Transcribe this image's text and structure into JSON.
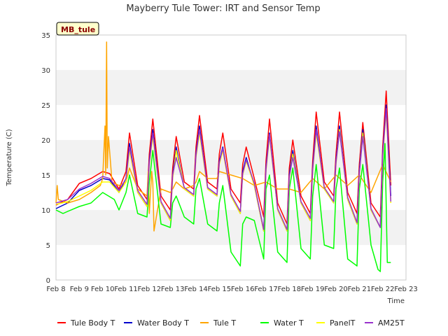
{
  "chart_data": {
    "type": "line",
    "title": "Mayberry Tule Tower: IRT and Sensor Temp",
    "badge": "MB_tule",
    "xlabel": "Time",
    "ylabel": "Temperature (C)",
    "xlim": [
      8,
      23
    ],
    "ylim": [
      0,
      35
    ],
    "xticks": [
      8,
      9,
      10,
      11,
      12,
      13,
      14,
      15,
      16,
      17,
      18,
      19,
      20,
      21,
      22,
      23
    ],
    "xtick_labels": [
      "Feb 8",
      "Feb 9",
      "Feb 10",
      "Feb 11",
      "Feb 12",
      "Feb 13",
      "Feb 14",
      "Feb 15",
      "Feb 16",
      "Feb 17",
      "Feb 18",
      "Feb 19",
      "Feb 20",
      "Feb 21",
      "Feb 22",
      "Feb 23"
    ],
    "yticks": [
      0,
      5,
      10,
      15,
      20,
      25,
      30,
      35
    ],
    "grid": "horizontal bands",
    "legend_position": "bottom",
    "series": [
      {
        "name": "Tule Body T",
        "color": "#ff0000",
        "x": [
          8.0,
          8.5,
          9.0,
          9.5,
          10.0,
          10.3,
          10.7,
          11.0,
          11.15,
          11.5,
          11.9,
          12.0,
          12.15,
          12.5,
          12.9,
          13.0,
          13.15,
          13.5,
          13.9,
          14.0,
          14.15,
          14.5,
          14.9,
          15.0,
          15.15,
          15.5,
          15.9,
          16.0,
          16.15,
          16.5,
          16.9,
          17.0,
          17.15,
          17.5,
          17.9,
          18.0,
          18.15,
          18.5,
          18.9,
          19.0,
          19.15,
          19.5,
          19.9,
          20.0,
          20.15,
          20.5,
          20.9,
          21.0,
          21.15,
          21.5,
          21.9,
          22.0,
          22.15,
          22.35
        ],
        "values": [
          10.7,
          11.5,
          13.8,
          14.5,
          15.5,
          15.2,
          13.0,
          15.5,
          21.0,
          13.5,
          11.5,
          18.0,
          23.0,
          12.0,
          10.0,
          16.0,
          20.5,
          14.0,
          13.0,
          19.0,
          23.5,
          14.0,
          13.0,
          18.0,
          21.0,
          13.0,
          11.0,
          16.5,
          19.0,
          14.5,
          9.0,
          17.0,
          23.0,
          11.0,
          8.0,
          16.0,
          20.0,
          12.0,
          9.5,
          17.0,
          24.0,
          14.0,
          12.0,
          18.0,
          24.0,
          12.5,
          9.5,
          16.5,
          22.5,
          11.0,
          9.0,
          19.0,
          27.0,
          13.5
        ]
      },
      {
        "name": "Water Body T",
        "color": "#0000cc",
        "x": [
          8.0,
          8.5,
          9.0,
          9.5,
          10.0,
          10.3,
          10.7,
          11.0,
          11.15,
          11.5,
          11.9,
          12.0,
          12.15,
          12.5,
          12.9,
          13.0,
          13.15,
          13.5,
          13.9,
          14.0,
          14.15,
          14.5,
          14.9,
          15.0,
          15.15,
          15.5,
          15.9,
          16.0,
          16.15,
          16.5,
          16.9,
          17.0,
          17.15,
          17.5,
          17.9,
          18.0,
          18.15,
          18.5,
          18.9,
          19.0,
          19.15,
          19.5,
          19.9,
          20.0,
          20.15,
          20.5,
          20.9,
          21.0,
          21.15,
          21.5,
          21.9,
          22.0,
          22.15,
          22.35
        ],
        "values": [
          10.2,
          11.0,
          12.8,
          13.5,
          14.5,
          14.3,
          12.5,
          14.5,
          19.5,
          12.5,
          10.5,
          17.0,
          21.5,
          11.0,
          8.5,
          15.0,
          19.0,
          13.0,
          12.0,
          18.0,
          22.0,
          13.0,
          12.0,
          17.0,
          19.0,
          12.0,
          9.5,
          15.5,
          17.5,
          13.5,
          7.0,
          16.0,
          21.0,
          10.0,
          7.0,
          15.0,
          18.5,
          11.0,
          8.5,
          16.0,
          22.0,
          13.0,
          11.0,
          17.0,
          22.0,
          11.5,
          8.0,
          15.5,
          21.5,
          10.0,
          7.5,
          18.0,
          25.0,
          12.0
        ]
      },
      {
        "name": "Tule T",
        "color": "#ffa500",
        "x": [
          8.0,
          8.05,
          8.1,
          8.5,
          9.0,
          9.5,
          9.9,
          10.0,
          10.1,
          10.13,
          10.17,
          10.2,
          10.25,
          10.4,
          10.7,
          11.0,
          11.15,
          11.5,
          11.9,
          11.95,
          12.0,
          12.1,
          12.15,
          12.2,
          12.5,
          12.9,
          13.0,
          13.15,
          13.5,
          13.9,
          14.0,
          14.15,
          14.5,
          14.9,
          15.0,
          15.5,
          16.0,
          16.5,
          17.0,
          17.5,
          18.0,
          18.5,
          19.0,
          19.5,
          20.0,
          20.5,
          21.0,
          21.5,
          22.0,
          22.35
        ],
        "values": [
          11.0,
          13.5,
          11.5,
          11.0,
          11.5,
          12.5,
          13.5,
          14.5,
          22.0,
          15.0,
          34.0,
          16.0,
          20.5,
          14.0,
          13.5,
          14.0,
          16.0,
          13.0,
          12.0,
          15.5,
          9.5,
          15.5,
          14.0,
          7.0,
          13.0,
          12.5,
          13.0,
          14.0,
          13.0,
          13.5,
          14.0,
          15.5,
          14.5,
          14.5,
          15.5,
          15.0,
          14.5,
          13.5,
          14.0,
          13.0,
          13.0,
          12.5,
          14.5,
          13.0,
          15.0,
          13.5,
          15.0,
          12.5,
          16.5,
          14.0
        ]
      },
      {
        "name": "Water T",
        "color": "#00ff00",
        "x": [
          8.0,
          8.3,
          8.5,
          9.0,
          9.5,
          10.0,
          10.5,
          10.7,
          11.0,
          11.15,
          11.5,
          11.9,
          12.0,
          12.15,
          12.5,
          12.9,
          13.0,
          13.15,
          13.5,
          13.9,
          14.0,
          14.15,
          14.5,
          14.9,
          15.0,
          15.15,
          15.5,
          15.9,
          16.0,
          16.15,
          16.5,
          16.9,
          17.0,
          17.15,
          17.5,
          17.9,
          18.0,
          18.15,
          18.5,
          18.9,
          19.0,
          19.15,
          19.5,
          19.9,
          20.0,
          20.15,
          20.5,
          20.9,
          21.0,
          21.15,
          21.5,
          21.8,
          21.9,
          22.0,
          22.1,
          22.2,
          22.35
        ],
        "values": [
          10.0,
          9.5,
          9.8,
          10.5,
          11.0,
          12.5,
          11.5,
          10.0,
          12.5,
          15.0,
          9.5,
          9.0,
          14.0,
          18.5,
          8.0,
          7.5,
          11.0,
          12.0,
          9.0,
          8.0,
          13.0,
          14.5,
          8.0,
          7.0,
          11.0,
          13.5,
          4.0,
          2.0,
          8.0,
          9.0,
          8.5,
          3.0,
          13.0,
          15.0,
          4.0,
          2.5,
          13.0,
          16.0,
          4.5,
          3.0,
          12.0,
          16.5,
          5.0,
          4.5,
          13.0,
          16.0,
          3.0,
          2.0,
          13.0,
          16.5,
          5.0,
          1.5,
          1.2,
          14.0,
          19.5,
          2.5,
          2.5
        ]
      },
      {
        "name": "PanelT",
        "color": "#ffff00",
        "x": [
          8.0,
          8.5,
          9.0,
          9.5,
          10.0,
          10.3,
          10.7,
          11.0,
          11.15,
          11.5,
          11.9,
          12.0,
          12.15,
          12.5,
          12.9,
          13.0,
          13.15,
          13.5,
          13.9,
          14.0,
          14.15,
          14.5,
          14.9,
          15.0,
          15.15,
          15.5,
          15.9,
          16.0,
          16.15,
          16.5,
          16.9,
          17.0,
          17.15,
          17.5,
          17.9,
          18.0,
          18.15,
          18.5,
          18.9,
          19.0,
          19.15,
          19.5,
          19.9,
          20.0,
          20.15,
          20.5,
          20.9,
          21.0,
          21.15,
          21.5,
          21.9,
          22.0,
          22.15,
          22.35
        ],
        "values": [
          10.8,
          11.2,
          12.0,
          12.8,
          14.0,
          14.0,
          12.5,
          14.0,
          18.5,
          12.5,
          10.5,
          16.5,
          20.5,
          11.0,
          8.5,
          14.5,
          18.5,
          13.0,
          12.0,
          17.5,
          21.0,
          13.0,
          12.0,
          16.5,
          18.5,
          12.0,
          9.5,
          15.0,
          17.0,
          13.5,
          7.0,
          15.5,
          20.5,
          10.0,
          7.0,
          14.5,
          18.0,
          11.0,
          8.5,
          15.5,
          21.0,
          13.0,
          11.0,
          16.5,
          21.5,
          11.5,
          8.0,
          15.0,
          21.0,
          10.0,
          7.5,
          17.5,
          24.0,
          11.0
        ]
      },
      {
        "name": "AM25T",
        "color": "#9932cc",
        "x": [
          8.0,
          8.5,
          9.0,
          9.5,
          10.0,
          10.3,
          10.7,
          11.0,
          11.15,
          11.5,
          11.9,
          12.0,
          12.15,
          12.5,
          12.9,
          13.0,
          13.15,
          13.5,
          13.9,
          14.0,
          14.15,
          14.5,
          14.9,
          15.0,
          15.15,
          15.5,
          15.9,
          16.0,
          16.15,
          16.5,
          16.9,
          17.0,
          17.15,
          17.5,
          17.9,
          18.0,
          18.15,
          18.5,
          18.9,
          19.0,
          19.15,
          19.5,
          19.9,
          20.0,
          20.15,
          20.5,
          20.9,
          21.0,
          21.15,
          21.5,
          21.9,
          22.0,
          22.15,
          22.35
        ],
        "values": [
          11.0,
          11.5,
          13.0,
          13.8,
          14.8,
          14.5,
          12.8,
          14.5,
          19.0,
          12.8,
          10.8,
          16.8,
          21.0,
          11.2,
          8.8,
          15.0,
          17.5,
          13.2,
          12.2,
          17.8,
          21.5,
          13.2,
          12.2,
          16.8,
          18.8,
          12.2,
          9.8,
          15.2,
          17.2,
          13.8,
          7.2,
          15.8,
          20.8,
          10.2,
          7.2,
          14.8,
          17.5,
          11.2,
          8.8,
          15.8,
          21.5,
          13.2,
          11.2,
          16.8,
          21.2,
          11.8,
          8.2,
          15.2,
          20.5,
          10.2,
          7.5,
          17.8,
          24.5,
          11.2
        ]
      }
    ]
  }
}
